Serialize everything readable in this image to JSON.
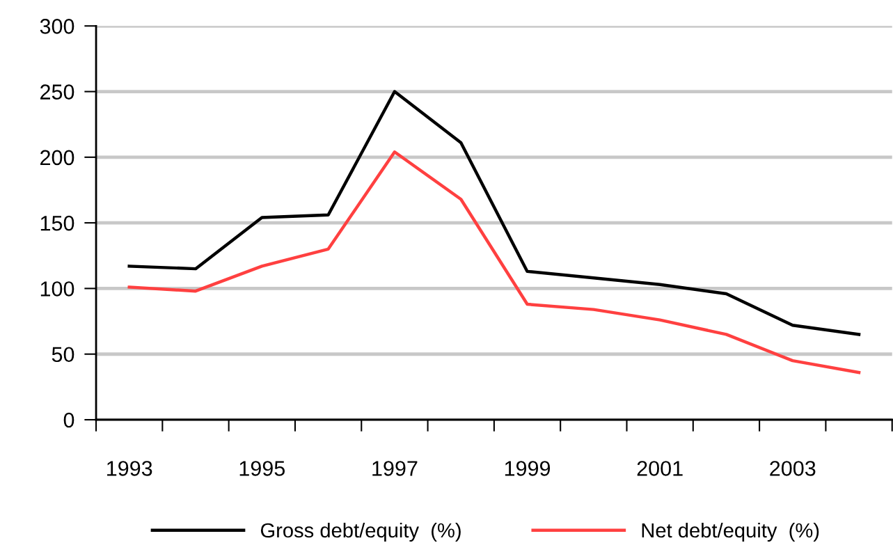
{
  "chart_data": {
    "type": "line",
    "categories": [
      "1993",
      null,
      "1995",
      null,
      "1997",
      null,
      "1999",
      null,
      "2001",
      null,
      "2003",
      null
    ],
    "series": [
      {
        "name": "Gross debt/equity  (%)",
        "color": "#000000",
        "values": [
          117,
          115,
          154,
          156,
          250,
          211,
          113,
          108,
          103,
          96,
          72,
          65
        ]
      },
      {
        "name": "Net debt/equity  (%)",
        "color": "#ff4040",
        "values": [
          101,
          98,
          117,
          130,
          204,
          168,
          88,
          84,
          76,
          65,
          45,
          36
        ]
      }
    ],
    "ylim": [
      0,
      300
    ],
    "yticks": [
      0,
      50,
      100,
      150,
      200,
      250,
      300
    ],
    "grid": "y",
    "legend": "bottom",
    "marker": "none",
    "line_style": "solid"
  }
}
